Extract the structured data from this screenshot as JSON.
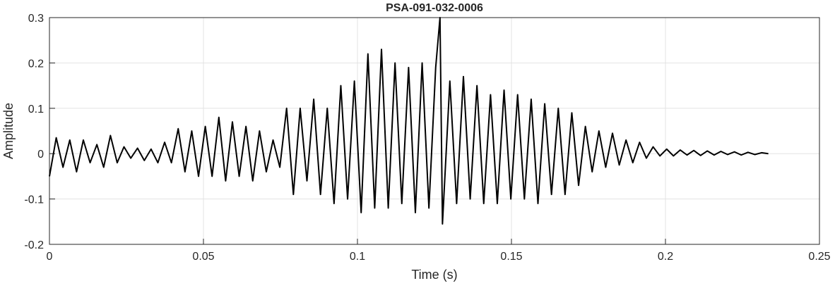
{
  "chart_data": {
    "type": "line",
    "title": "PSA-091-032-0006",
    "x_label": "Time (s)",
    "y_label": "Amplitude",
    "xlim": [
      0,
      0.25
    ],
    "xticks": [
      0,
      0.05,
      0.1,
      0.15,
      0.2,
      0.25
    ],
    "ylim": [
      -0.2,
      0.3
    ],
    "yticks": [
      -0.2,
      -0.1,
      0,
      0.1,
      0.2,
      0.3
    ],
    "grid": true,
    "series": [
      {
        "color": "#000000",
        "x": [
          0,
          0.0022,
          0.0044,
          0.0066,
          0.0088,
          0.011,
          0.0132,
          0.0154,
          0.0176,
          0.0198,
          0.022,
          0.0242,
          0.0264,
          0.0286,
          0.0308,
          0.033,
          0.0352,
          0.0374,
          0.0396,
          0.0418,
          0.044,
          0.0462,
          0.0484,
          0.0506,
          0.0528,
          0.055,
          0.0572,
          0.0594,
          0.0616,
          0.0638,
          0.066,
          0.0682,
          0.0704,
          0.0726,
          0.0748,
          0.077,
          0.0792,
          0.0814,
          0.0836,
          0.0858,
          0.088,
          0.0902,
          0.0924,
          0.0946,
          0.0968,
          0.099,
          0.1012,
          0.1034,
          0.1056,
          0.1078,
          0.11,
          0.1122,
          0.1144,
          0.1166,
          0.1188,
          0.121,
          0.1232,
          0.1254,
          0.1268,
          0.1276,
          0.13,
          0.1322,
          0.1344,
          0.1366,
          0.1388,
          0.141,
          0.1432,
          0.1454,
          0.1476,
          0.1498,
          0.152,
          0.1542,
          0.1564,
          0.1586,
          0.1608,
          0.163,
          0.1652,
          0.1674,
          0.1696,
          0.1718,
          0.174,
          0.1762,
          0.1784,
          0.1806,
          0.1828,
          0.185,
          0.1872,
          0.1894,
          0.1916,
          0.1938,
          0.196,
          0.1982,
          0.2004,
          0.2026,
          0.2048,
          0.207,
          0.2092,
          0.2114,
          0.2136,
          0.2158,
          0.218,
          0.2202,
          0.2224,
          0.2246,
          0.2268,
          0.229,
          0.2312,
          0.2334
        ],
        "values": [
          -0.05,
          0.035,
          -0.03,
          0.03,
          -0.04,
          0.03,
          -0.02,
          0.02,
          -0.03,
          0.04,
          -0.02,
          0.015,
          -0.01,
          0.012,
          -0.015,
          0.01,
          -0.02,
          0.025,
          -0.02,
          0.055,
          -0.04,
          0.05,
          -0.05,
          0.06,
          -0.05,
          0.08,
          -0.06,
          0.07,
          -0.05,
          0.06,
          -0.06,
          0.05,
          -0.04,
          0.03,
          -0.03,
          0.1,
          -0.09,
          0.1,
          -0.06,
          0.12,
          -0.09,
          0.1,
          -0.11,
          0.15,
          -0.1,
          0.16,
          -0.13,
          0.22,
          -0.12,
          0.23,
          -0.12,
          0.2,
          -0.11,
          0.19,
          -0.13,
          0.2,
          -0.12,
          0.19,
          0.3,
          -0.155,
          0.16,
          -0.11,
          0.17,
          -0.1,
          0.15,
          -0.11,
          0.13,
          -0.11,
          0.14,
          -0.1,
          0.13,
          -0.1,
          0.12,
          -0.11,
          0.11,
          -0.09,
          0.1,
          -0.09,
          0.09,
          -0.07,
          0.06,
          -0.04,
          0.05,
          -0.03,
          0.045,
          -0.025,
          0.03,
          -0.02,
          0.025,
          -0.01,
          0.015,
          -0.005,
          0.01,
          -0.005,
          0.008,
          -0.003,
          0.007,
          -0.004,
          0.006,
          -0.003,
          0.005,
          -0.002,
          0.004,
          -0.003,
          0.003,
          -0.002,
          0.002,
          0
        ]
      }
    ]
  }
}
